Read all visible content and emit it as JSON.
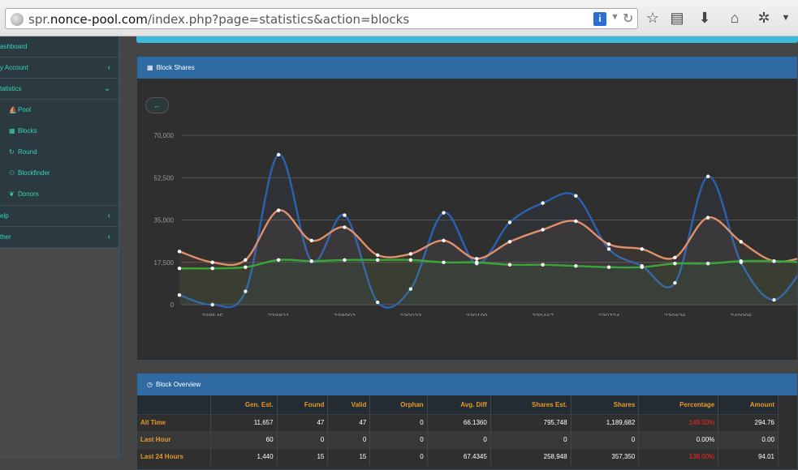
{
  "browser": {
    "url_prefix": "spr.",
    "url_host": "nonce-pool.com",
    "url_path": "/index.php?page=statistics&action=blocks"
  },
  "sidebar": {
    "items": [
      {
        "label": "ashboard",
        "chevron": ""
      },
      {
        "label": "y Account",
        "chevron": "‹"
      },
      {
        "label": "tatistics",
        "chevron": "⌄"
      }
    ],
    "sub_items": [
      {
        "label": "Pool",
        "icon": "pool-icon"
      },
      {
        "label": "Blocks",
        "icon": "blocks-icon"
      },
      {
        "label": "Round",
        "icon": "round-icon"
      },
      {
        "label": "Blockfinder",
        "icon": "blockfinder-icon"
      },
      {
        "label": "Donors",
        "icon": "donors-icon"
      }
    ],
    "items_after": [
      {
        "label": "elp",
        "chevron": "‹"
      },
      {
        "label": "ther",
        "chevron": "‹"
      }
    ]
  },
  "shares_panel": {
    "title": "Block Shares",
    "back_label": "←"
  },
  "chart_data": {
    "type": "line",
    "x": [
      "",
      "238545",
      "",
      "238821",
      "",
      "238992",
      "",
      "239023",
      "",
      "239199",
      "",
      "239467",
      "",
      "239724",
      "",
      "239826",
      "",
      "240096",
      "",
      ""
    ],
    "series": [
      {
        "name": "",
        "color": "#2a62b0",
        "values": [
          4000,
          0,
          5500,
          62000,
          18000,
          37000,
          1000,
          6500,
          38000,
          17000,
          34000,
          42000,
          45000,
          23000,
          16000,
          9000,
          53000,
          17500,
          2000,
          18000
        ]
      },
      {
        "name": "",
        "color": "#e0906a",
        "values": [
          22000,
          17500,
          18500,
          39000,
          26500,
          32000,
          20500,
          21000,
          26500,
          19000,
          26000,
          31000,
          34500,
          25000,
          23000,
          19500,
          36000,
          26000,
          18000,
          20000
        ]
      },
      {
        "name": "",
        "color": "#3aa63a",
        "values": [
          15000,
          15000,
          15500,
          18500,
          18000,
          18500,
          18500,
          18500,
          17500,
          17500,
          16500,
          16500,
          16000,
          15500,
          15500,
          17000,
          17000,
          18000,
          18000,
          17500
        ]
      }
    ],
    "yticks": [
      "0",
      "17,500",
      "35,000",
      "52,500",
      "70,000"
    ],
    "ylim": [
      0,
      70000
    ]
  },
  "overview_panel": {
    "title": "Block Overview",
    "columns": [
      "",
      "Gen. Est.",
      "Found",
      "Valid",
      "Orphan",
      "Avg. Diff",
      "Shares Est.",
      "Shares",
      "Percentage",
      "Amount"
    ],
    "rows": [
      {
        "label": "All Time",
        "cells": [
          "11,657",
          "47",
          "47",
          "0",
          "66.1360",
          "795,748",
          "1,189,682",
          "149.50%",
          "294.76"
        ],
        "red": 7
      },
      {
        "label": "Last Hour",
        "cells": [
          "60",
          "0",
          "0",
          "0",
          "0",
          "0",
          "0",
          "0.00%",
          "0.00"
        ],
        "red": -1
      },
      {
        "label": "Last 24 Hours",
        "cells": [
          "1,440",
          "15",
          "15",
          "0",
          "67.4345",
          "258,948",
          "357,350",
          "138.00%",
          "94.01"
        ],
        "red": 7
      }
    ]
  }
}
